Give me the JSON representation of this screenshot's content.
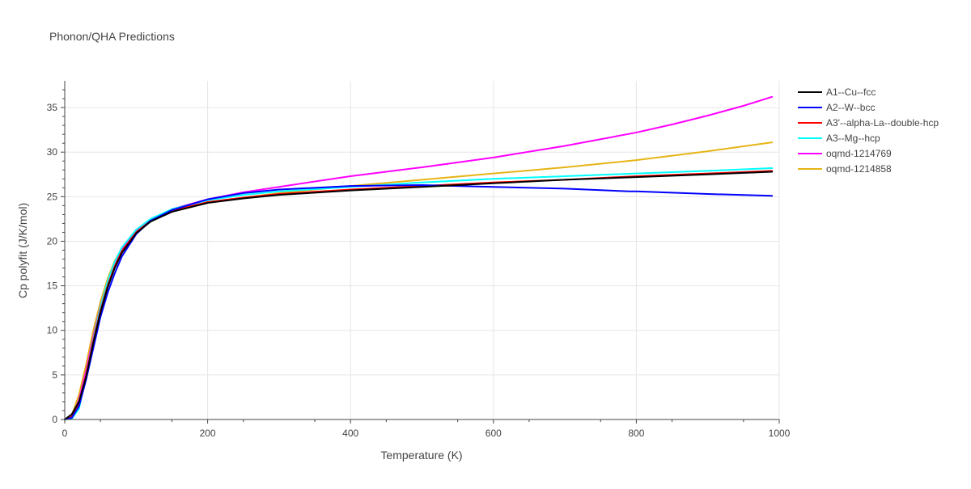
{
  "chart_data": {
    "type": "line",
    "title": "Phonon/QHA Predictions",
    "xlabel": "Temperature (K)",
    "ylabel": "Cp polyfit (J/K/mol)",
    "xlim": [
      0,
      1000
    ],
    "ylim": [
      0,
      38
    ],
    "xticks": [
      0,
      200,
      400,
      600,
      800,
      1000
    ],
    "yticks": [
      0,
      5,
      10,
      15,
      20,
      25,
      30,
      35
    ],
    "grid": true,
    "legend_position": "right",
    "series": [
      {
        "name": "A1--Cu--fcc",
        "color": "#000000",
        "points": [
          [
            0,
            0
          ],
          [
            10,
            0.6
          ],
          [
            20,
            2.0
          ],
          [
            30,
            4.8
          ],
          [
            40,
            8.6
          ],
          [
            50,
            12.0
          ],
          [
            60,
            14.8
          ],
          [
            70,
            17.0
          ],
          [
            80,
            18.7
          ],
          [
            100,
            20.9
          ],
          [
            120,
            22.2
          ],
          [
            150,
            23.3
          ],
          [
            200,
            24.3
          ],
          [
            250,
            24.8
          ],
          [
            300,
            25.2
          ],
          [
            400,
            25.7
          ],
          [
            500,
            26.1
          ],
          [
            600,
            26.5
          ],
          [
            700,
            26.9
          ],
          [
            800,
            27.2
          ],
          [
            900,
            27.5
          ],
          [
            990,
            27.8
          ]
        ]
      },
      {
        "name": "A2--W--bcc",
        "color": "#0000ff",
        "points": [
          [
            0,
            0
          ],
          [
            10,
            0.2
          ],
          [
            20,
            1.5
          ],
          [
            30,
            4.5
          ],
          [
            40,
            8.0
          ],
          [
            50,
            11.5
          ],
          [
            60,
            14.2
          ],
          [
            70,
            16.4
          ],
          [
            80,
            18.3
          ],
          [
            100,
            20.8
          ],
          [
            120,
            22.3
          ],
          [
            150,
            23.5
          ],
          [
            200,
            24.7
          ],
          [
            250,
            25.4
          ],
          [
            300,
            25.8
          ],
          [
            400,
            26.2
          ],
          [
            500,
            26.3
          ],
          [
            550,
            26.2
          ],
          [
            600,
            26.1
          ],
          [
            700,
            25.9
          ],
          [
            790,
            25.6
          ],
          [
            800,
            25.6
          ],
          [
            850,
            25.45
          ],
          [
            900,
            25.3
          ],
          [
            990,
            25.1
          ]
        ]
      },
      {
        "name": "A3'--alpha-La--double-hcp",
        "color": "#ff0000",
        "points": [
          [
            0,
            0
          ],
          [
            10,
            0.3
          ],
          [
            20,
            1.8
          ],
          [
            30,
            5.0
          ],
          [
            40,
            8.8
          ],
          [
            50,
            12.2
          ],
          [
            60,
            15.0
          ],
          [
            70,
            17.2
          ],
          [
            80,
            18.9
          ],
          [
            100,
            21.0
          ],
          [
            120,
            22.3
          ],
          [
            150,
            23.4
          ],
          [
            200,
            24.4
          ],
          [
            250,
            24.9
          ],
          [
            300,
            25.3
          ],
          [
            400,
            25.8
          ],
          [
            500,
            26.2
          ],
          [
            600,
            26.6
          ],
          [
            700,
            26.9
          ],
          [
            800,
            27.3
          ],
          [
            900,
            27.6
          ],
          [
            990,
            27.9
          ]
        ]
      },
      {
        "name": "A3--Mg--hcp",
        "color": "#00ffff",
        "points": [
          [
            0,
            0
          ],
          [
            10,
            0.1
          ],
          [
            20,
            1.2
          ],
          [
            30,
            5.0
          ],
          [
            40,
            9.0
          ],
          [
            50,
            12.6
          ],
          [
            60,
            15.5
          ],
          [
            70,
            17.7
          ],
          [
            80,
            19.3
          ],
          [
            100,
            21.3
          ],
          [
            120,
            22.5
          ],
          [
            150,
            23.6
          ],
          [
            200,
            24.6
          ],
          [
            250,
            25.2
          ],
          [
            300,
            25.6
          ],
          [
            400,
            26.1
          ],
          [
            500,
            26.6
          ],
          [
            600,
            27.0
          ],
          [
            700,
            27.3
          ],
          [
            800,
            27.6
          ],
          [
            900,
            27.9
          ],
          [
            990,
            28.2
          ]
        ]
      },
      {
        "name": "oqmd-1214769",
        "color": "#ff00ff",
        "points": [
          [
            0,
            0
          ],
          [
            10,
            0.3
          ],
          [
            20,
            2.2
          ],
          [
            30,
            5.5
          ],
          [
            40,
            9.3
          ],
          [
            50,
            12.7
          ],
          [
            60,
            15.4
          ],
          [
            70,
            17.5
          ],
          [
            80,
            19.1
          ],
          [
            100,
            21.1
          ],
          [
            120,
            22.4
          ],
          [
            150,
            23.6
          ],
          [
            200,
            24.7
          ],
          [
            250,
            25.5
          ],
          [
            300,
            26.1
          ],
          [
            400,
            27.3
          ],
          [
            500,
            28.3
          ],
          [
            600,
            29.4
          ],
          [
            700,
            30.7
          ],
          [
            800,
            32.2
          ],
          [
            850,
            33.1
          ],
          [
            900,
            34.1
          ],
          [
            950,
            35.2
          ],
          [
            990,
            36.2
          ]
        ]
      },
      {
        "name": "oqmd-1214858",
        "color": "#e6b416",
        "points": [
          [
            0,
            0
          ],
          [
            10,
            0.5
          ],
          [
            20,
            2.8
          ],
          [
            30,
            6.2
          ],
          [
            40,
            10.0
          ],
          [
            50,
            13.2
          ],
          [
            60,
            15.8
          ],
          [
            70,
            17.8
          ],
          [
            80,
            19.2
          ],
          [
            100,
            21.1
          ],
          [
            120,
            22.3
          ],
          [
            150,
            23.3
          ],
          [
            200,
            24.3
          ],
          [
            250,
            24.9
          ],
          [
            300,
            25.4
          ],
          [
            400,
            26.2
          ],
          [
            500,
            26.9
          ],
          [
            600,
            27.6
          ],
          [
            700,
            28.3
          ],
          [
            800,
            29.1
          ],
          [
            900,
            30.1
          ],
          [
            990,
            31.1
          ]
        ]
      }
    ]
  }
}
